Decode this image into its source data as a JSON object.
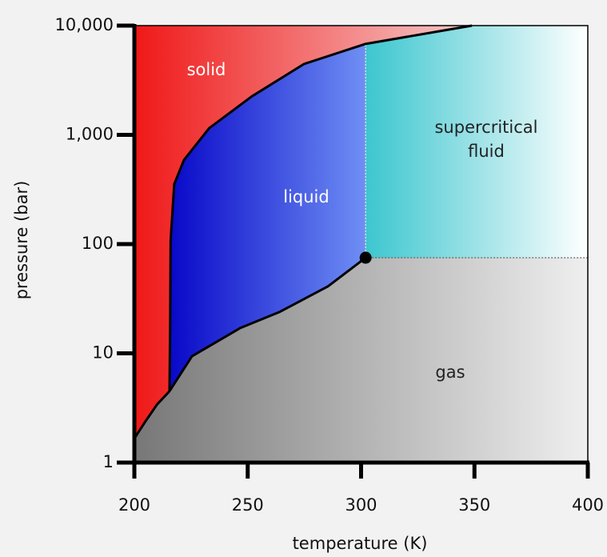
{
  "chart_data": {
    "type": "phase-diagram",
    "xlabel": "temperature (K)",
    "ylabel": "pressure (bar)",
    "xlim": [
      200,
      400
    ],
    "ylim": [
      1,
      10000
    ],
    "ylog": true,
    "xticks": [
      200,
      250,
      300,
      350,
      400
    ],
    "yticks": [
      1,
      10,
      100,
      {
        "value": 1000,
        "label": "1,000"
      },
      {
        "value": 10000,
        "label": "10,000"
      }
    ],
    "curves": [
      {
        "x": [
          200,
          205,
          210,
          215.5
        ],
        "y": [
          1.66,
          2.4,
          3.4,
          4.5
        ]
      },
      {
        "x": [
          215.5,
          215.8,
          216,
          217.6,
          221.9,
          233,
          251.8,
          274.8,
          302,
          348.9
        ],
        "y": [
          4.5,
          20,
          108,
          355,
          590,
          1150,
          2250,
          4450,
          6800,
          10000
        ]
      },
      {
        "x": [
          215.5,
          225.4,
          246.6,
          264.2,
          285.4,
          302
        ],
        "y": [
          4.5,
          9.4,
          17,
          24,
          41,
          75
        ]
      }
    ],
    "critical_point": {
      "x": 302,
      "y": 75
    },
    "regions": [
      {
        "label": [
          "solid"
        ],
        "colors": [
          "#f01818",
          "#f6caca"
        ]
      },
      {
        "label": [
          "liquid"
        ],
        "colors": [
          "#0808c8",
          "#6f8ff4"
        ]
      },
      {
        "label": [
          "supercritical",
          "fluid"
        ],
        "colors": [
          "#3cc6cf",
          "#ffffff"
        ]
      },
      {
        "label": [
          "gas"
        ],
        "colors": [
          "#777777",
          "#efefef"
        ]
      }
    ]
  }
}
